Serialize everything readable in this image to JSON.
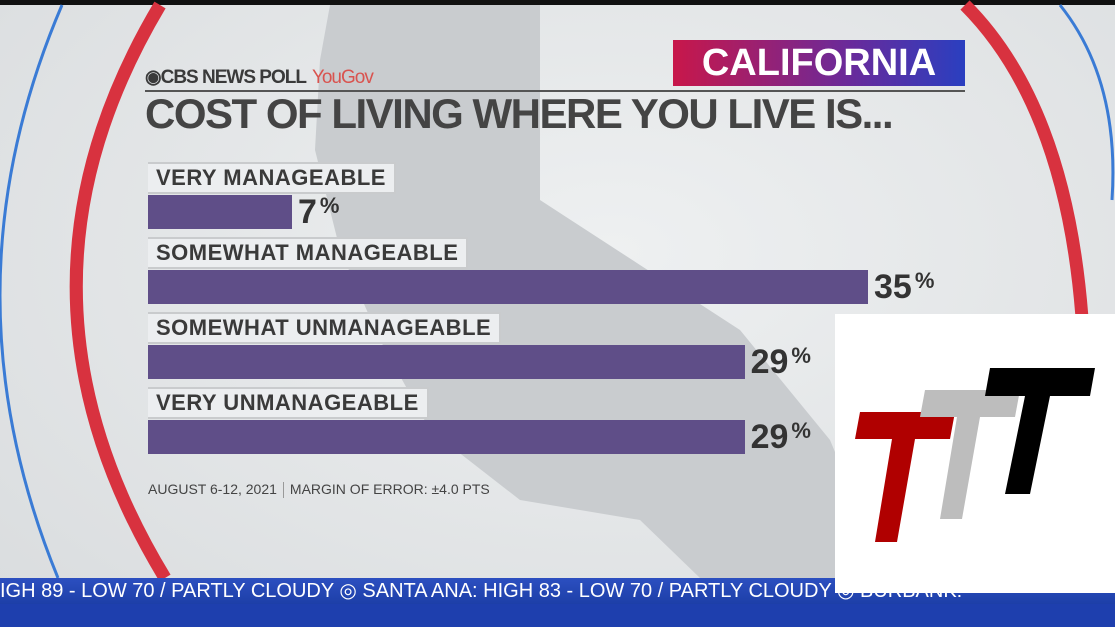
{
  "header": {
    "brand": "CBS NEWS POLL",
    "partner": "YouGov",
    "region": "CALIFORNIA",
    "title": "COST OF LIVING WHERE YOU LIVE IS..."
  },
  "chart_data": {
    "type": "bar",
    "orientation": "horizontal",
    "title": "COST OF LIVING WHERE YOU LIVE IS...",
    "categories": [
      "VERY MANAGEABLE",
      "SOMEWHAT MANAGEABLE",
      "SOMEWHAT UNMANAGEABLE",
      "VERY UNMANAGEABLE"
    ],
    "values": [
      7,
      35,
      29,
      29
    ],
    "value_labels": [
      "7",
      "35",
      "29",
      "29"
    ],
    "unit": "%",
    "bar_color": "#5f4e88",
    "xlim": [
      0,
      35
    ]
  },
  "footer": {
    "dates": "AUGUST 6-12, 2021",
    "margin": "MARGIN OF ERROR: ±4.0 PTS"
  },
  "ticker": {
    "text": "IGH 89 - LOW 70 / PARTLY CLOUDY   ◎   SANTA ANA: HIGH 83 - LOW 70 / PARTLY CLOUDY   ◎   BURBANK:"
  },
  "colors": {
    "ticker": "#2c4fc0",
    "region_gradient": [
      "#c8174a",
      "#2a3fc0"
    ],
    "logo": [
      "#b00000",
      "#bdbdbd",
      "#000000"
    ]
  }
}
